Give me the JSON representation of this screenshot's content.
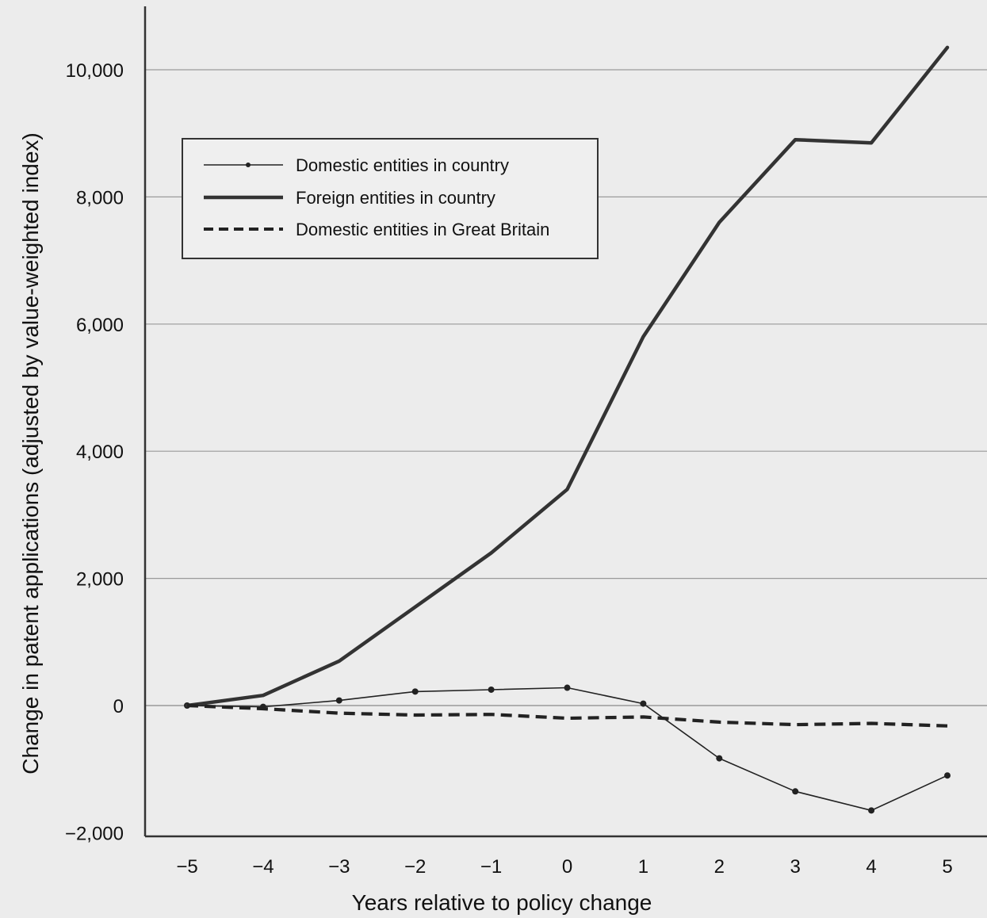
{
  "chart_data": {
    "type": "line",
    "title": "",
    "xlabel": "Years relative to policy change",
    "ylabel": "Change in patent applications (adjusted by value-weighted index)",
    "x": [
      -5,
      -4,
      -3,
      -2,
      -1,
      0,
      1,
      2,
      3,
      4,
      5
    ],
    "x_tick_labels": [
      "−5",
      "−4",
      "−3",
      "−2",
      "−1",
      "0",
      "1",
      "2",
      "3",
      "4",
      "5"
    ],
    "ylim": [
      -2000,
      10500
    ],
    "y_ticks": [
      -2000,
      0,
      2000,
      4000,
      6000,
      8000,
      10000
    ],
    "y_tick_labels": [
      "−2,000",
      "0",
      "2,000",
      "4,000",
      "6,000",
      "8,000",
      "10,000"
    ],
    "grid": "horizontal",
    "legend_position": "top-left",
    "series": [
      {
        "name": "Domestic entities in country",
        "style": "thin-with-markers",
        "color": "#222222",
        "values": [
          0,
          -20,
          80,
          220,
          250,
          280,
          30,
          -830,
          -1350,
          -1650,
          -1100
        ]
      },
      {
        "name": "Foreign entities in country",
        "style": "thick-solid",
        "color": "#333333",
        "values": [
          0,
          160,
          700,
          1550,
          2400,
          3400,
          5800,
          7600,
          8900,
          8850,
          10350
        ]
      },
      {
        "name": "Domestic entities in Great Britain",
        "style": "thick-dashed",
        "color": "#222222",
        "values": [
          0,
          -50,
          -120,
          -150,
          -140,
          -200,
          -180,
          -260,
          -300,
          -280,
          -320
        ]
      }
    ]
  }
}
